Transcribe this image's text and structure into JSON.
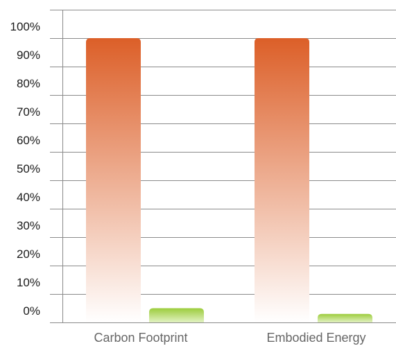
{
  "chart_data": {
    "type": "bar",
    "categories": [
      "Carbon Footprint",
      "Embodied Energy"
    ],
    "series": [
      {
        "values": [
          100,
          100
        ],
        "color_top": "#dc5f28",
        "color_bottom": "#ffffff"
      },
      {
        "values": [
          5,
          3
        ],
        "color_top": "#9ccc3c",
        "color_bottom": "#e2f2c2"
      }
    ],
    "ylim": [
      0,
      110
    ],
    "yticks": [
      0,
      10,
      20,
      30,
      40,
      50,
      60,
      70,
      80,
      90,
      100
    ],
    "ytick_labels": [
      "0%",
      "10%",
      "20%",
      "30%",
      "40%",
      "50%",
      "60%",
      "70%",
      "80%",
      "90%",
      "100%"
    ],
    "grid": true,
    "legend": "none"
  }
}
